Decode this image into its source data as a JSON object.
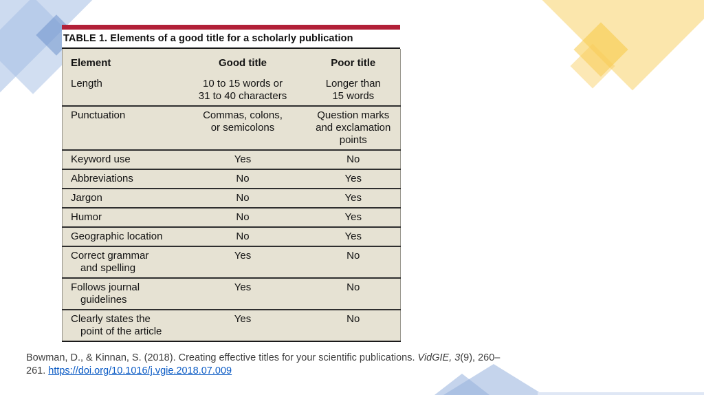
{
  "table": {
    "title": "TABLE 1. Elements of a good title for a scholarly publication",
    "columns": [
      "Element",
      "Good title",
      "Poor title"
    ],
    "rows": [
      {
        "element": [
          "Length"
        ],
        "good": [
          "10 to 15 words or",
          "31 to 40 characters"
        ],
        "poor": [
          "Longer than",
          "15 words"
        ]
      },
      {
        "element": [
          "Punctuation"
        ],
        "good": [
          "Commas, colons,",
          "or semicolons"
        ],
        "poor": [
          "Question marks",
          "and exclamation",
          "points"
        ]
      },
      {
        "element": [
          "Keyword use"
        ],
        "good": [
          "Yes"
        ],
        "poor": [
          "No"
        ]
      },
      {
        "element": [
          "Abbreviations"
        ],
        "good": [
          "No"
        ],
        "poor": [
          "Yes"
        ]
      },
      {
        "element": [
          "Jargon"
        ],
        "good": [
          "No"
        ],
        "poor": [
          "Yes"
        ]
      },
      {
        "element": [
          "Humor"
        ],
        "good": [
          "No"
        ],
        "poor": [
          "Yes"
        ]
      },
      {
        "element": [
          "Geographic location"
        ],
        "good": [
          "No"
        ],
        "poor": [
          "Yes"
        ]
      },
      {
        "element": [
          "Correct grammar",
          "and spelling"
        ],
        "good": [
          "Yes"
        ],
        "poor": [
          "No"
        ]
      },
      {
        "element": [
          "Follows journal",
          "guidelines"
        ],
        "good": [
          "Yes"
        ],
        "poor": [
          "No"
        ]
      },
      {
        "element": [
          "Clearly states the",
          "point of the article"
        ],
        "good": [
          "Yes"
        ],
        "poor": [
          "No"
        ]
      }
    ]
  },
  "citation": {
    "line1": {
      "text": "Bowman, D., & Kinnan, S. (2018). Creating effective titles for your scientific publications. ",
      "italic": "VidGIE, 3",
      "tail": "(9), 260–"
    },
    "line2": {
      "text": "261. ",
      "link": "https://doi.org/10.1016/j.vgie.2018.07.009"
    }
  },
  "colors": {
    "table_accent_bar": "#b22038",
    "table_body_bg": "#e6e2d3",
    "table_rule": "#2e2e2e",
    "link": "#0b5bc5",
    "decor_blue_light": "#cdd9ee",
    "decor_blue_dark": "#9db6de",
    "decor_yellow_light": "#fce8b2",
    "decor_yellow_dark": "#fad777"
  }
}
